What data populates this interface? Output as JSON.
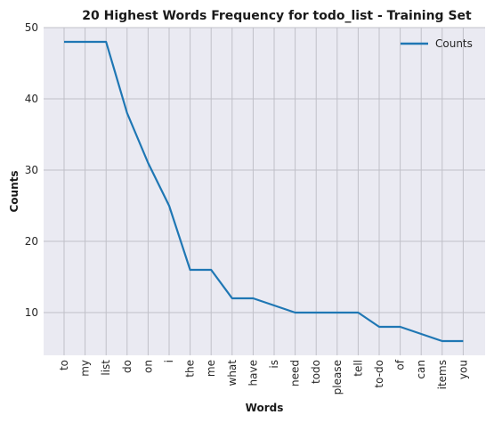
{
  "chart_data": {
    "type": "line",
    "title": "20 Highest Words Frequency for todo_list - Training Set",
    "xlabel": "Words",
    "ylabel": "Counts",
    "categories": [
      "to",
      "my",
      "list",
      "do",
      "on",
      "i",
      "the",
      "me",
      "what",
      "have",
      "is",
      "need",
      "todo",
      "please",
      "tell",
      "to-do",
      "of",
      "can",
      "items",
      "you"
    ],
    "series": [
      {
        "name": "Counts",
        "values": [
          48,
          48,
          48,
          38,
          31,
          25,
          16,
          16,
          12,
          12,
          11,
          10,
          10,
          10,
          10,
          8,
          8,
          7,
          6,
          6
        ]
      }
    ],
    "ylim": [
      4,
      50
    ],
    "yticks": [
      10,
      20,
      30,
      40,
      50
    ],
    "grid": true,
    "legend_position": "top-right",
    "colors": {
      "line": "#1f77b4",
      "plot_bg": "#eaeaf2",
      "grid": "#c0c0c8"
    }
  }
}
